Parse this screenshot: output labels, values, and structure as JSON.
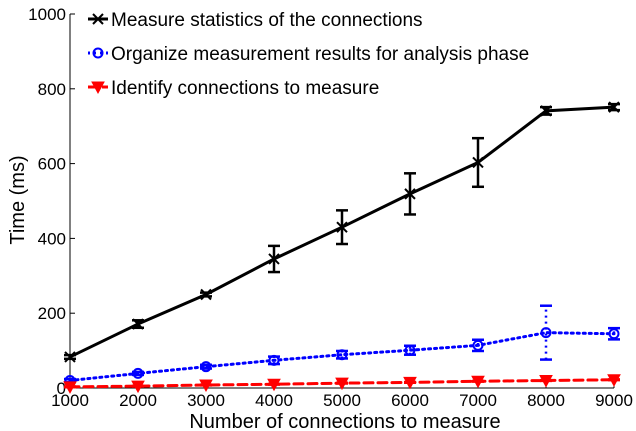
{
  "chart_data": {
    "type": "line",
    "title": "",
    "xlabel": "Number of connections to measure",
    "ylabel": "Time (ms)",
    "x": [
      1000,
      2000,
      3000,
      4000,
      5000,
      6000,
      7000,
      8000,
      9000
    ],
    "xlim": [
      1000,
      9000
    ],
    "ylim": [
      0,
      1000
    ],
    "x_ticks": [
      "1000",
      "2000",
      "3000",
      "4000",
      "5000",
      "6000",
      "7000",
      "8000",
      "9000"
    ],
    "y_ticks": [
      "0",
      "200",
      "400",
      "600",
      "800",
      "1000"
    ],
    "grid": false,
    "legend_position": "top-left",
    "series": [
      {
        "name": "Measure statistics of the connections",
        "color": "#000000",
        "line_style": "solid",
        "marker": "x",
        "values": [
          83,
          171,
          250,
          345,
          430,
          519,
          603,
          741,
          751
        ],
        "errors": [
          5,
          10,
          5,
          35,
          45,
          55,
          65,
          10,
          8
        ]
      },
      {
        "name": "Organize measurement results for analysis phase",
        "color": "#0000ff",
        "line_style": "dotted",
        "marker": "circle",
        "values": [
          20,
          39,
          57,
          74,
          89,
          101,
          114,
          148,
          145
        ],
        "errors": [
          4,
          4,
          5,
          10,
          10,
          12,
          15,
          72,
          15
        ]
      },
      {
        "name": "Identify connections to measure",
        "color": "#ff0000",
        "line_style": "dashed",
        "marker": "triangle-down",
        "values": [
          3,
          5,
          8,
          10,
          13,
          15,
          18,
          20,
          22
        ],
        "errors": [
          1,
          1,
          1,
          1,
          1,
          1,
          1,
          1,
          1
        ]
      }
    ]
  }
}
